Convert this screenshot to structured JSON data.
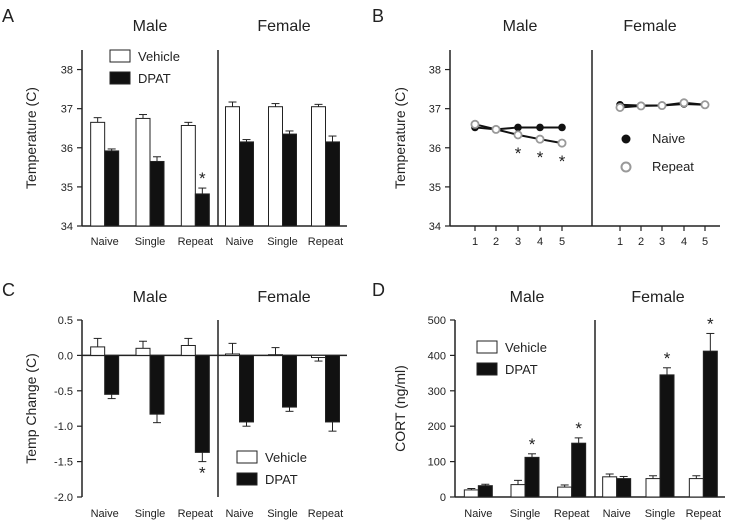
{
  "chart_data": [
    {
      "panel": "A",
      "type": "bar",
      "ylabel": "Temperature (C)",
      "ylim": [
        34,
        38.5
      ],
      "yticks": [
        "34",
        "35",
        "36",
        "37",
        "38"
      ],
      "groups": [
        "Male",
        "Female"
      ],
      "categories": [
        "Naive",
        "Single",
        "Repeat"
      ],
      "series": [
        {
          "name": "Vehicle",
          "color": "#ffffff",
          "values": [
            [
              36.65,
              36.75,
              36.57
            ],
            [
              37.05,
              37.05,
              37.05
            ]
          ],
          "errors": [
            [
              0.12,
              0.1,
              0.08
            ],
            [
              0.12,
              0.08,
              0.06
            ]
          ]
        },
        {
          "name": "DPAT",
          "color": "#111111",
          "values": [
            [
              35.92,
              35.65,
              34.82
            ],
            [
              36.15,
              36.35,
              36.15
            ]
          ],
          "errors": [
            [
              0.05,
              0.12,
              0.15
            ],
            [
              0.06,
              0.08,
              0.15
            ]
          ]
        }
      ],
      "significant": [
        {
          "series": 1,
          "group": 0,
          "category": 2,
          "mark": "*"
        }
      ],
      "legend_position": "top-left"
    },
    {
      "panel": "B",
      "type": "line",
      "ylabel": "Temperature (C)",
      "ylim": [
        34,
        38.5
      ],
      "yticks": [
        "34",
        "35",
        "36",
        "37",
        "38"
      ],
      "groups": [
        "Male",
        "Female"
      ],
      "x": [
        "1",
        "2",
        "3",
        "4",
        "5"
      ],
      "series": [
        {
          "name": "Naive",
          "marker": "filled",
          "values": [
            [
              36.52,
              36.47,
              36.52,
              36.52,
              36.52
            ],
            [
              37.1,
              37.08,
              37.08,
              37.12,
              37.1
            ]
          ]
        },
        {
          "name": "Repeat",
          "marker": "open",
          "values": [
            [
              36.6,
              36.47,
              36.33,
              36.22,
              36.12
            ],
            [
              37.03,
              37.07,
              37.08,
              37.15,
              37.1
            ]
          ]
        }
      ],
      "significant": [
        {
          "series": 1,
          "group": 0,
          "index": 2,
          "mark": "*"
        },
        {
          "series": 1,
          "group": 0,
          "index": 3,
          "mark": "*"
        },
        {
          "series": 1,
          "group": 0,
          "index": 4,
          "mark": "*"
        }
      ],
      "legend_position": "right"
    },
    {
      "panel": "C",
      "type": "bar",
      "ylabel": "Temp Change (C)",
      "ylim": [
        -2.0,
        0.5
      ],
      "yticks": [
        "-2.0",
        "-1.5",
        "-1.0",
        "-0.5",
        "0.0",
        "0.5"
      ],
      "groups": [
        "Male",
        "Female"
      ],
      "categories": [
        "Naive",
        "Single",
        "Repeat"
      ],
      "series": [
        {
          "name": "Vehicle",
          "color": "#ffffff",
          "values": [
            [
              0.12,
              0.1,
              0.14
            ],
            [
              0.02,
              0.01,
              -0.03
            ]
          ],
          "errors": [
            [
              0.12,
              0.1,
              0.1
            ],
            [
              0.15,
              0.1,
              0.05
            ]
          ]
        },
        {
          "name": "DPAT",
          "color": "#111111",
          "values": [
            [
              -0.55,
              -0.83,
              -1.37
            ],
            [
              -0.94,
              -0.73,
              -0.94
            ]
          ],
          "errors": [
            [
              0.06,
              0.12,
              0.13
            ],
            [
              0.06,
              0.06,
              0.13
            ]
          ]
        }
      ],
      "significant": [
        {
          "series": 1,
          "group": 0,
          "category": 2,
          "mark": "*"
        }
      ],
      "legend_position": "bottom-center"
    },
    {
      "panel": "D",
      "type": "bar",
      "ylabel": "CORT (ng/ml)",
      "ylim": [
        0,
        500
      ],
      "yticks": [
        "0",
        "100",
        "200",
        "300",
        "400",
        "500"
      ],
      "groups": [
        "Male",
        "Female"
      ],
      "categories": [
        "Naive",
        "Single",
        "Repeat"
      ],
      "series": [
        {
          "name": "Vehicle",
          "color": "#ffffff",
          "values": [
            [
              20,
              35,
              28
            ],
            [
              57,
              52,
              52
            ]
          ],
          "errors": [
            [
              4,
              12,
              6
            ],
            [
              8,
              8,
              8
            ]
          ]
        },
        {
          "name": "DPAT",
          "color": "#111111",
          "values": [
            [
              32,
              112,
              152
            ],
            [
              52,
              345,
              412
            ]
          ],
          "errors": [
            [
              4,
              10,
              15
            ],
            [
              6,
              20,
              50
            ]
          ]
        }
      ],
      "significant": [
        {
          "series": 1,
          "group": 0,
          "category": 1,
          "mark": "*"
        },
        {
          "series": 1,
          "group": 0,
          "category": 2,
          "mark": "*"
        },
        {
          "series": 1,
          "group": 1,
          "category": 1,
          "mark": "*"
        },
        {
          "series": 1,
          "group": 1,
          "category": 2,
          "mark": "*"
        }
      ],
      "legend_position": "top-left"
    }
  ]
}
